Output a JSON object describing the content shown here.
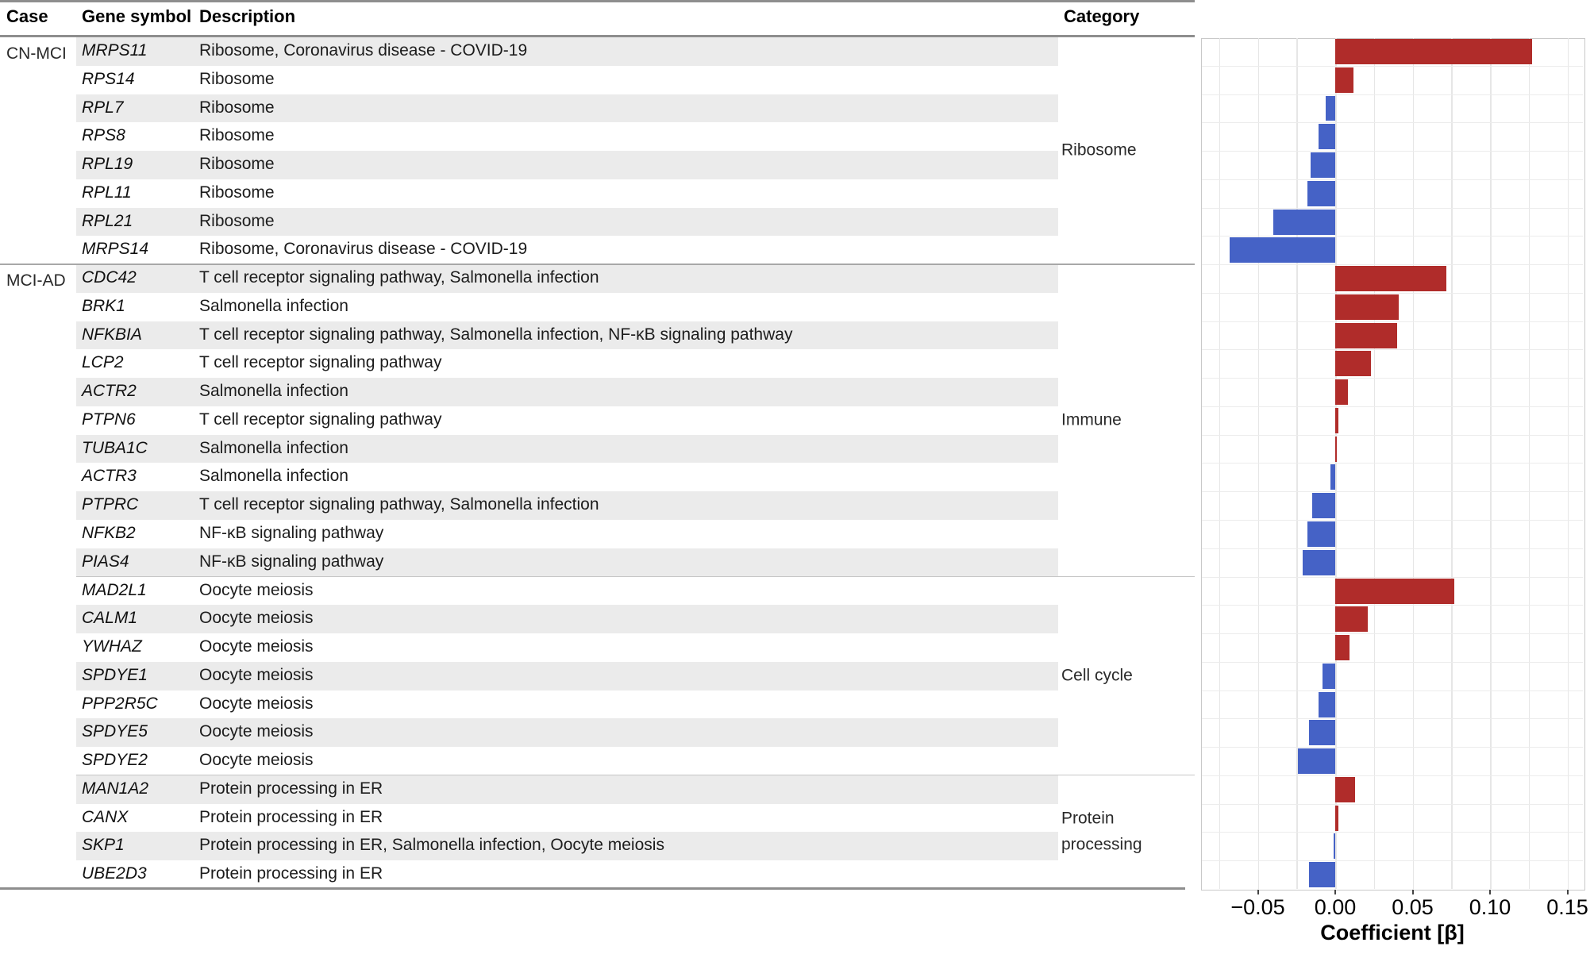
{
  "figure": {
    "table": {
      "headers": {
        "case": "Case",
        "gene": "Gene symbol",
        "description": "Description",
        "category": "Category"
      },
      "case_groups": [
        {
          "label": "CN-MCI",
          "start_row": 0
        },
        {
          "label": "MCI-AD",
          "start_row": 8
        }
      ],
      "categories": [
        {
          "label": "Ribosome",
          "start_row": 0,
          "end_row": 7
        },
        {
          "label": "Immune",
          "start_row": 8,
          "end_row": 18
        },
        {
          "label": "Cell cycle",
          "start_row": 19,
          "end_row": 25
        },
        {
          "label": "Protein processing",
          "start_row": 26,
          "end_row": 29
        }
      ],
      "rows": [
        {
          "gene": "MRPS11",
          "description": "Ribosome, Coronavirus disease - COVID-19"
        },
        {
          "gene": "RPS14",
          "description": "Ribosome"
        },
        {
          "gene": "RPL7",
          "description": "Ribosome"
        },
        {
          "gene": "RPS8",
          "description": "Ribosome"
        },
        {
          "gene": "RPL19",
          "description": "Ribosome"
        },
        {
          "gene": "RPL11",
          "description": "Ribosome"
        },
        {
          "gene": "RPL21",
          "description": "Ribosome"
        },
        {
          "gene": "MRPS14",
          "description": "Ribosome, Coronavirus disease - COVID-19"
        },
        {
          "gene": "CDC42",
          "description": "T cell receptor signaling pathway, Salmonella infection"
        },
        {
          "gene": "BRK1",
          "description": "Salmonella infection"
        },
        {
          "gene": "NFKBIA",
          "description": "T cell receptor signaling pathway, Salmonella infection, NF-κB signaling pathway"
        },
        {
          "gene": "LCP2",
          "description": "T cell receptor signaling pathway"
        },
        {
          "gene": "ACTR2",
          "description": "Salmonella infection"
        },
        {
          "gene": "PTPN6",
          "description": "T cell receptor signaling pathway"
        },
        {
          "gene": "TUBA1C",
          "description": "Salmonella infection"
        },
        {
          "gene": "ACTR3",
          "description": "Salmonella infection"
        },
        {
          "gene": "PTPRC",
          "description": "T cell receptor signaling pathway, Salmonella infection"
        },
        {
          "gene": "NFKB2",
          "description": "NF-κB signaling pathway"
        },
        {
          "gene": "PIAS4",
          "description": "NF-κB signaling pathway"
        },
        {
          "gene": "MAD2L1",
          "description": "Oocyte meiosis"
        },
        {
          "gene": "CALM1",
          "description": "Oocyte meiosis"
        },
        {
          "gene": "YWHAZ",
          "description": "Oocyte meiosis"
        },
        {
          "gene": "SPDYE1",
          "description": "Oocyte meiosis"
        },
        {
          "gene": "PPP2R5C",
          "description": "Oocyte meiosis"
        },
        {
          "gene": "SPDYE5",
          "description": "Oocyte meiosis"
        },
        {
          "gene": "SPDYE2",
          "description": "Oocyte meiosis"
        },
        {
          "gene": "MAN1A2",
          "description": "Protein processing in ER"
        },
        {
          "gene": "CANX",
          "description": "Protein processing in ER"
        },
        {
          "gene": "SKP1",
          "description": "Protein processing in ER, Salmonella infection, Oocyte meiosis"
        },
        {
          "gene": "UBE2D3",
          "description": "Protein processing in ER"
        }
      ]
    },
    "chart_data": {
      "type": "bar",
      "orientation": "horizontal",
      "title": "",
      "xlabel": "Coefficient [β]",
      "ylabel": "",
      "categories": [
        "MRPS11",
        "RPS14",
        "RPL7",
        "RPS8",
        "RPL19",
        "RPL11",
        "RPL21",
        "MRPS14",
        "CDC42",
        "BRK1",
        "NFKBIA",
        "LCP2",
        "ACTR2",
        "PTPN6",
        "TUBA1C",
        "ACTR3",
        "PTPRC",
        "NFKB2",
        "PIAS4",
        "MAD2L1",
        "CALM1",
        "YWHAZ",
        "SPDYE1",
        "PPP2R5C",
        "SPDYE5",
        "SPDYE2",
        "MAN1A2",
        "CANX",
        "SKP1",
        "UBE2D3"
      ],
      "values": [
        0.127,
        0.012,
        -0.006,
        -0.011,
        -0.016,
        -0.018,
        -0.04,
        -0.068,
        0.072,
        0.041,
        0.04,
        0.023,
        0.008,
        0.002,
        0.001,
        -0.003,
        -0.015,
        -0.018,
        -0.021,
        0.077,
        0.021,
        0.009,
        -0.008,
        -0.011,
        -0.017,
        -0.024,
        0.013,
        0.002,
        -0.001,
        -0.017
      ],
      "xlim": [
        -0.0867,
        0.1605
      ],
      "grid": true,
      "gridline_step": 0.025,
      "gridline_min": -0.075,
      "gridline_max": 0.15,
      "xticks": [
        -0.05,
        0,
        0.05,
        0.1,
        0.15
      ],
      "xtick_labels": [
        "−0.05",
        "0.00",
        "0.05",
        "0.10",
        "0.15"
      ],
      "legend": "none",
      "colors": {
        "positive": "#b02c2a",
        "negative": "#4562c6"
      }
    },
    "colors": {
      "row_stripe": "#ebebeb",
      "rule_dark": "#8e8e8e",
      "rule_case": "#a8a8a8",
      "rule_category": "#c6c6c6",
      "grid": "#e6e6e6",
      "panel_border": "#c9c9c9"
    }
  }
}
